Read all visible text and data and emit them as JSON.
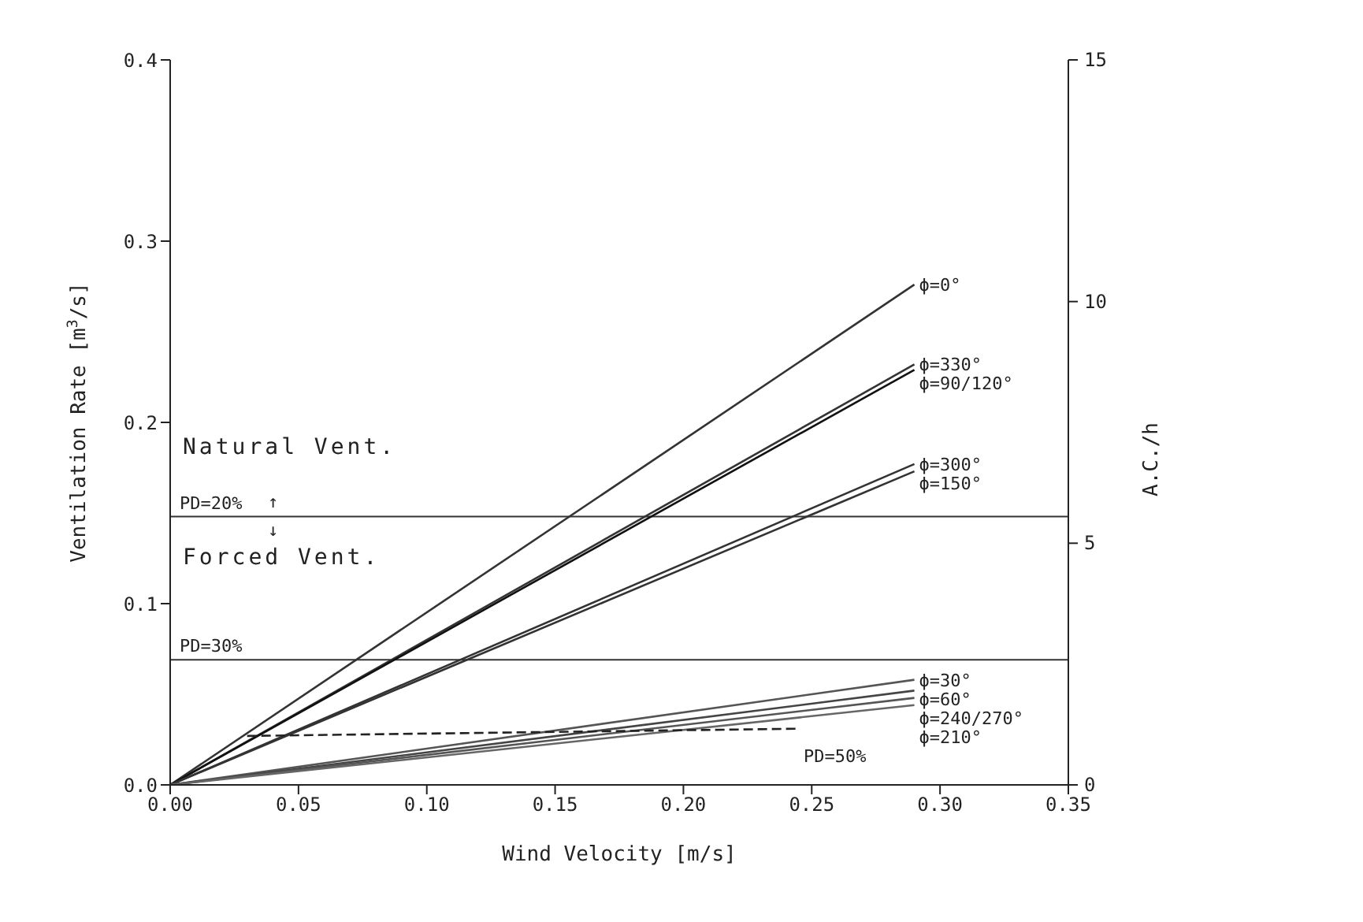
{
  "chart_data": {
    "type": "line",
    "xlabel": "Wind Velocity [m/s]",
    "ylabel": "Ventilation Rate [m$^{3}$/s]",
    "y2label": "A.C./h",
    "xlim": [
      0,
      0.35
    ],
    "xticks": [
      {
        "value": 0,
        "label": "0.00"
      },
      {
        "value": 0.05,
        "label": "0.05"
      },
      {
        "value": 0.1,
        "label": "0.10"
      },
      {
        "value": 0.15,
        "label": "0.15"
      },
      {
        "value": 0.2,
        "label": "0.20"
      },
      {
        "value": 0.25,
        "label": "0.25"
      },
      {
        "value": 0.3,
        "label": "0.30"
      },
      {
        "value": 0.35,
        "label": "0.35"
      }
    ],
    "ylim": [
      0,
      0.4
    ],
    "yticks": [
      {
        "value": 0,
        "label": "0.0"
      },
      {
        "value": 0.1,
        "label": "0.1"
      },
      {
        "value": 0.2,
        "label": "0.2"
      },
      {
        "value": 0.3,
        "label": "0.3"
      },
      {
        "value": 0.4,
        "label": "0.4"
      }
    ],
    "y2lim": [
      0,
      15
    ],
    "y2ticks": [
      0,
      5,
      10,
      15
    ],
    "marker": "none",
    "series": [
      {
        "name": "ϕ=0°",
        "color": "#333333",
        "x": [
          0,
          0.29
        ],
        "values": [
          0,
          0.276
        ]
      },
      {
        "name": "ϕ=330°",
        "color": "#333333",
        "x": [
          0,
          0.29
        ],
        "values": [
          0,
          0.232
        ]
      },
      {
        "name": "ϕ=90/120°",
        "color": "#111111",
        "x": [
          0,
          0.29
        ],
        "values": [
          0,
          0.229
        ]
      },
      {
        "name": "ϕ=300°",
        "color": "#333333",
        "x": [
          0,
          0.29
        ],
        "values": [
          0,
          0.177
        ]
      },
      {
        "name": "ϕ=150°",
        "color": "#333333",
        "x": [
          0,
          0.29
        ],
        "values": [
          0,
          0.173
        ]
      },
      {
        "name": "ϕ=30°",
        "color": "#555555",
        "x": [
          0,
          0.29
        ],
        "values": [
          0,
          0.058
        ]
      },
      {
        "name": "ϕ=60°",
        "color": "#444444",
        "x": [
          0,
          0.29
        ],
        "values": [
          0,
          0.052
        ]
      },
      {
        "name": "ϕ=240/270°",
        "color": "#555555",
        "x": [
          0,
          0.29
        ],
        "values": [
          0,
          0.048
        ]
      },
      {
        "name": "ϕ=210°",
        "color": "#666666",
        "x": [
          0,
          0.29
        ],
        "values": [
          0,
          0.044
        ]
      },
      {
        "name": "PD=50%",
        "color": "#222222",
        "line_style": "dashed",
        "x": [
          0.03,
          0.245
        ],
        "values": [
          0.027,
          0.031
        ]
      }
    ],
    "ref_lines": [
      {
        "axis": "y",
        "value": 0.148,
        "color": "#333333"
      },
      {
        "axis": "y",
        "value": 0.069,
        "color": "#333333"
      }
    ],
    "annotations": [
      "Natural Vent.",
      "PD=20%",
      "↑",
      "↓",
      "Forced Vent.",
      "PD=30%"
    ]
  }
}
